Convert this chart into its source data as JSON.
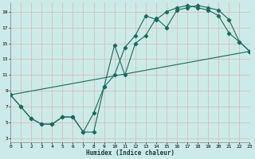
{
  "xlabel": "Humidex (Indice chaleur)",
  "bg_color": "#cceae7",
  "grid_color": "#aad4d0",
  "line_color": "#1a6b5a",
  "line1_x": [
    0,
    1,
    2,
    3,
    4,
    5,
    6,
    7,
    8,
    9,
    10,
    11,
    12,
    13,
    14,
    15,
    16,
    17,
    18,
    19,
    20,
    21,
    22,
    23
  ],
  "line1_y": [
    8.5,
    7.0,
    5.5,
    4.8,
    4.8,
    5.7,
    5.7,
    3.8,
    3.8,
    9.5,
    11.0,
    14.5,
    16.0,
    18.5,
    18.0,
    19.0,
    19.5,
    19.8,
    19.5,
    19.2,
    18.5,
    16.3,
    15.2,
    14.0
  ],
  "line2_x": [
    0,
    1,
    2,
    3,
    4,
    5,
    6,
    7,
    8,
    9,
    10,
    11,
    12,
    13,
    14,
    15,
    16,
    17,
    18,
    19,
    20,
    21,
    22,
    23
  ],
  "line2_y": [
    8.5,
    7.0,
    5.5,
    4.8,
    4.8,
    5.7,
    5.7,
    3.8,
    6.2,
    9.5,
    14.8,
    11.0,
    15.0,
    16.0,
    18.2,
    17.0,
    19.2,
    19.5,
    19.8,
    19.5,
    19.2,
    18.0,
    15.2,
    14.0
  ],
  "line3_x": [
    0,
    23
  ],
  "line3_y": [
    8.5,
    14.0
  ],
  "xlim": [
    0,
    23
  ],
  "ylim": [
    2.5,
    20.2
  ],
  "xticks": [
    0,
    1,
    2,
    3,
    4,
    5,
    6,
    7,
    8,
    9,
    10,
    11,
    12,
    13,
    14,
    15,
    16,
    17,
    18,
    19,
    20,
    21,
    22,
    23
  ],
  "yticks": [
    3,
    5,
    7,
    9,
    11,
    13,
    15,
    17,
    19
  ]
}
